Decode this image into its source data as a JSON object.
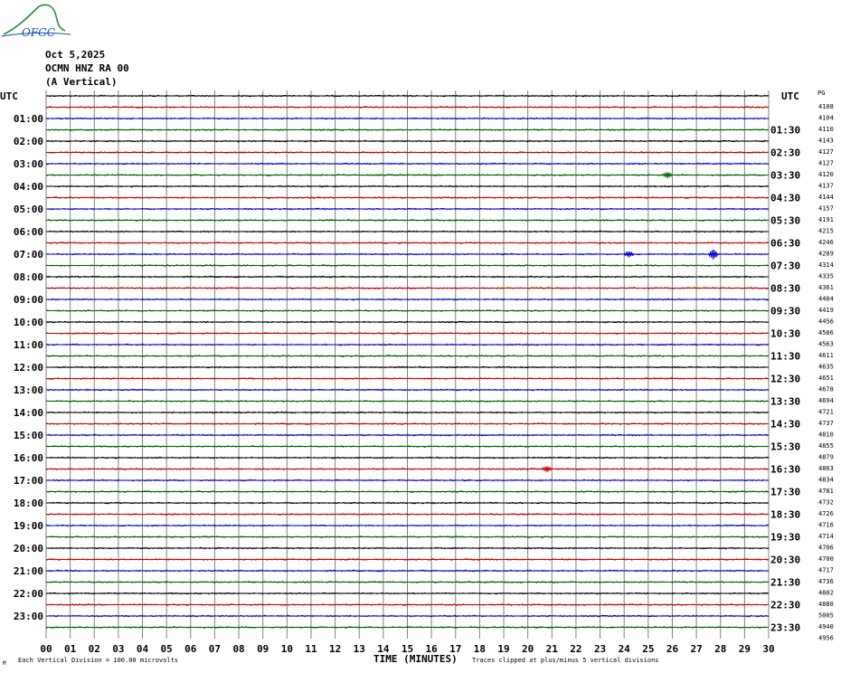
{
  "logo": {
    "text": "OFGC",
    "colors": {
      "arc": "#2e8b3d",
      "text": "#1a4fa0"
    }
  },
  "header": {
    "date": "Oct 5,2025",
    "station": "OCMN HNZ RA 00",
    "component": "(A Vertical)"
  },
  "left_utc_label": "UTC",
  "right_utc_label": "UTC",
  "corner_label": "PG",
  "footer": {
    "division_note": "Each Vertical Division = 100.00 microvolts",
    "axis_title": "TIME (MINUTES)",
    "clip_note": "Traces clipped at plus/minus 5 vertical divisions",
    "corner_mark": "M"
  },
  "colors": {
    "trace_cycle": [
      "#000000",
      "#d00000",
      "#0000d0",
      "#006400"
    ],
    "grid": "#808080"
  },
  "chart_data": {
    "type": "line",
    "title": "Oct 5,2025 OCMN HNZ RA 00 (A Vertical)",
    "xlabel": "TIME (MINUTES)",
    "xlim": [
      0,
      30
    ],
    "x_ticks": [
      "00",
      "01",
      "02",
      "03",
      "04",
      "05",
      "06",
      "07",
      "08",
      "09",
      "10",
      "11",
      "12",
      "13",
      "14",
      "15",
      "16",
      "17",
      "18",
      "19",
      "20",
      "21",
      "22",
      "23",
      "24",
      "25",
      "26",
      "27",
      "28",
      "29",
      "30"
    ],
    "left_hour_labels": [
      "01:00",
      "02:00",
      "03:00",
      "04:00",
      "05:00",
      "06:00",
      "07:00",
      "08:00",
      "09:00",
      "10:00",
      "11:00",
      "12:00",
      "13:00",
      "14:00",
      "15:00",
      "16:00",
      "17:00",
      "18:00",
      "19:00",
      "20:00",
      "21:00",
      "22:00",
      "23:00"
    ],
    "right_hour_labels": [
      "01:30",
      "02:30",
      "03:30",
      "04:30",
      "05:30",
      "06:30",
      "07:30",
      "08:30",
      "09:30",
      "10:30",
      "11:30",
      "12:30",
      "13:30",
      "14:30",
      "15:30",
      "16:30",
      "17:30",
      "18:30",
      "19:30",
      "20:30",
      "21:30",
      "22:30",
      "23:30"
    ],
    "trace_offsets": [
      4108,
      4104,
      4110,
      4143,
      4127,
      4127,
      4120,
      4137,
      4144,
      4157,
      4191,
      4215,
      4246,
      4289,
      4314,
      4335,
      4361,
      4404,
      4419,
      4456,
      4506,
      4563,
      4611,
      4635,
      4651,
      4678,
      4694,
      4721,
      4737,
      4810,
      4855,
      4879,
      4863,
      4834,
      4781,
      4732,
      4726,
      4716,
      4714,
      4706,
      4700,
      4717,
      4736,
      4802,
      4880,
      5005,
      4940,
      4956
    ],
    "events": [
      {
        "trace": 14,
        "minute": 27.7,
        "amplitude": "high"
      },
      {
        "trace": 14,
        "minute": 24.2,
        "amplitude": "medium"
      },
      {
        "trace": 7,
        "minute": 25.8,
        "amplitude": "medium"
      },
      {
        "trace": 33,
        "minute": 20.8,
        "amplitude": "medium"
      }
    ],
    "grid": true,
    "division_microvolts": 100.0
  }
}
